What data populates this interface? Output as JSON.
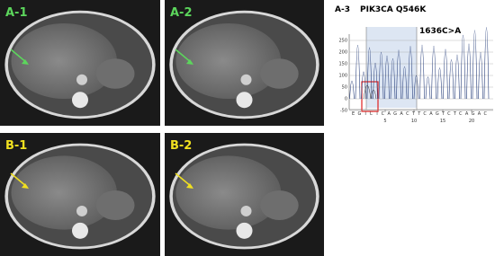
{
  "panels": [
    {
      "label": "A-1"
    },
    {
      "label": "A-2"
    },
    {
      "label": "B-1"
    },
    {
      "label": "B-2"
    }
  ],
  "sequencing": {
    "label": "A-3",
    "gene": "PIK3CA Q546K",
    "mutation": "1636C>A",
    "yticks": [
      250,
      200,
      150,
      100,
      50,
      0,
      -50
    ],
    "xticks": [
      5,
      10,
      15,
      20
    ],
    "sequence": "EGTCTCAGACTTCAGTCTCAGAC"
  }
}
